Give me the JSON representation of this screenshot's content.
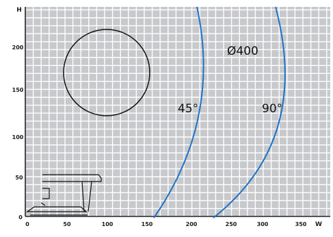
{
  "diagram": {
    "axes": {
      "x_letter": "W",
      "y_letter": "H",
      "x_ticks": [
        "0",
        "50",
        "100",
        "150",
        "200",
        "250",
        "300",
        "350"
      ],
      "y_ticks": [
        "0",
        "50",
        "100",
        "150",
        "200"
      ]
    },
    "labels": {
      "diameter": "Ø400",
      "angle_45": "45°",
      "angle_90": "90°"
    },
    "colors": {
      "grid_background": "#c7c9cc",
      "grid_line": "#ffffff",
      "curve": "#1e72c8",
      "outline": "#111111"
    }
  }
}
